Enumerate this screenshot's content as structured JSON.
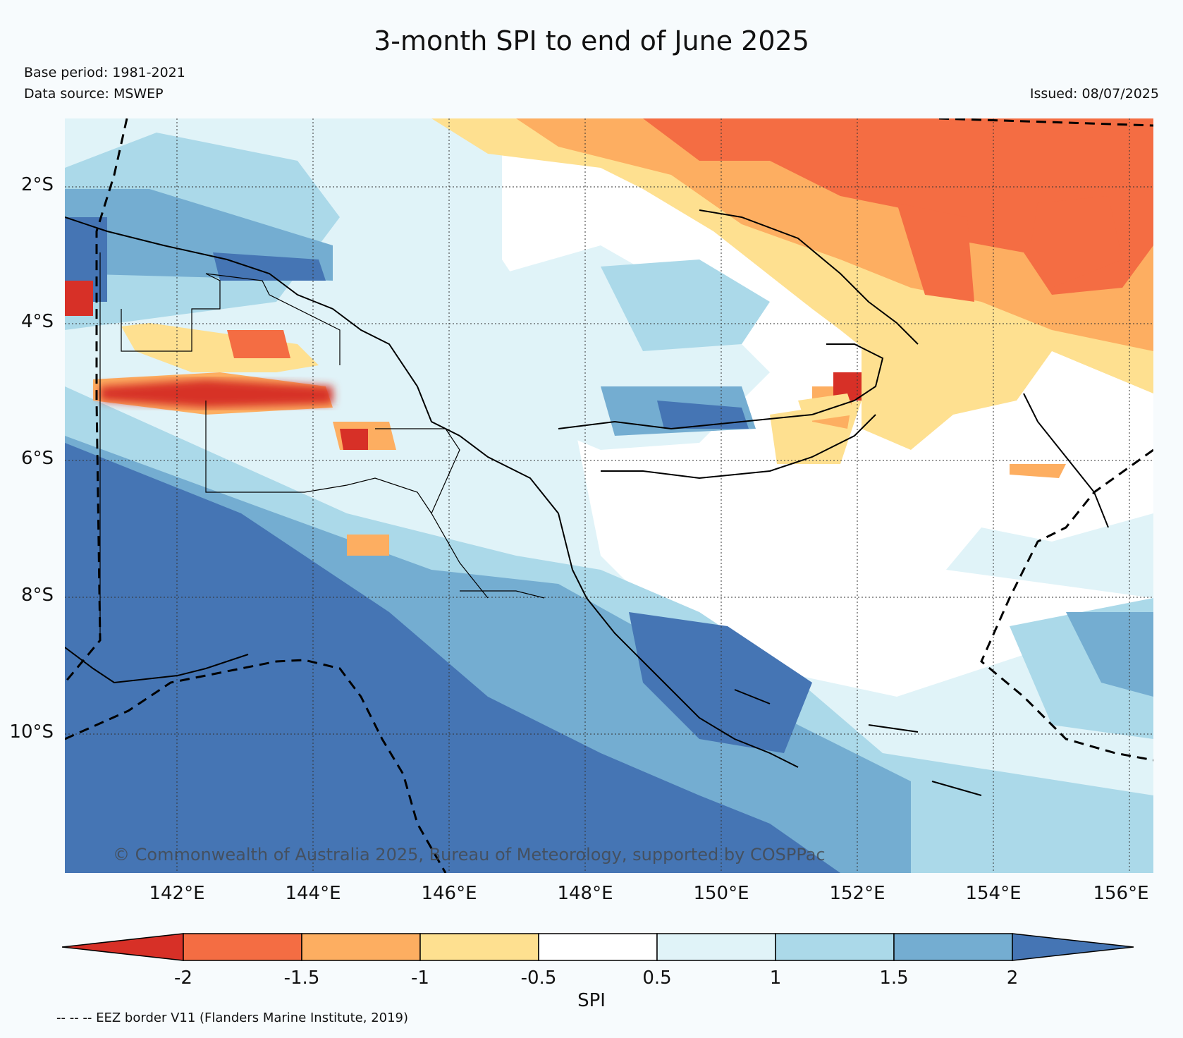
{
  "header": {
    "title": "3-month SPI to end of June 2025",
    "base_period": "Base period: 1981-2021",
    "data_source": "Data source: MSWEP",
    "issued": "Issued: 08/07/2025"
  },
  "map": {
    "lat_labels": [
      "2°S",
      "4°S",
      "6°S",
      "8°S",
      "10°S"
    ],
    "lon_labels": [
      "142°E",
      "144°E",
      "146°E",
      "148°E",
      "150°E",
      "152°E",
      "154°E",
      "156°E"
    ],
    "copyright": "© Commonwealth of Australia 2025, Bureau of Meteorology, supported by COSPPac"
  },
  "colorbar": {
    "label": "SPI",
    "ticks": [
      "-2",
      "-1.5",
      "-1",
      "-0.5",
      "0.5",
      "1",
      "1.5",
      "2"
    ],
    "colors": [
      "#d73027",
      "#f46d43",
      "#fdae61",
      "#fee090",
      "#ffffff",
      "#e0f3f8",
      "#abd9e9",
      "#74add1",
      "#4575b4"
    ]
  },
  "footnote": "-- -- -- EEZ border V11 (Flanders Marine Institute, 2019)"
}
